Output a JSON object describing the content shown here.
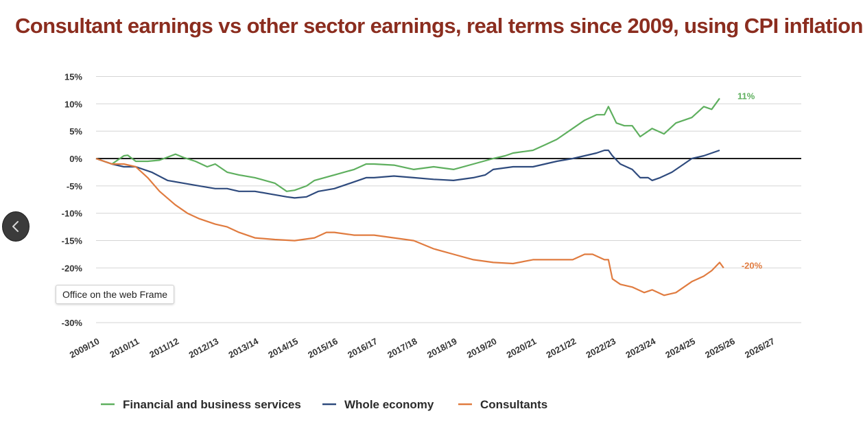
{
  "chart_data": {
    "type": "line",
    "title": "Consultant earnings vs other sector earnings, real terms since 2009, using CPI inflation",
    "xlabel": "",
    "ylabel": "",
    "ylim": [
      -30,
      15
    ],
    "yticks": [
      15,
      10,
      5,
      0,
      -5,
      -10,
      -15,
      -20,
      -30
    ],
    "ytick_labels": [
      "15%",
      "10%",
      "5%",
      "0%",
      "-5%",
      "-10%",
      "-15%",
      "-20%",
      "-30%"
    ],
    "categories": [
      "2009/10",
      "2010/11",
      "2011/12",
      "2012/13",
      "2013/14",
      "2014/15",
      "2015/16",
      "2016/17",
      "2017/18",
      "2018/19",
      "2019/20",
      "2020/21",
      "2021/22",
      "2022/23",
      "2023/24",
      "2024/25",
      "2025/26",
      "2026/27"
    ],
    "grid": true,
    "zero_line": true,
    "legend": "bottom",
    "series": [
      {
        "name": "Financial and business services",
        "color": "#5eaf5e",
        "end_label": "11%",
        "x": [
          0,
          0.4,
          0.7,
          0.8,
          1.0,
          1.3,
          1.6,
          2.0,
          2.2,
          2.5,
          2.8,
          3.0,
          3.3,
          3.6,
          4.0,
          4.5,
          4.8,
          5.0,
          5.3,
          5.5,
          6.0,
          6.5,
          6.8,
          7.0,
          7.5,
          8.0,
          8.5,
          9.0,
          9.5,
          10.0,
          10.3,
          10.5,
          11.0,
          11.3,
          11.6,
          12.0,
          12.3,
          12.6,
          12.8,
          12.9,
          13.0,
          13.1,
          13.3,
          13.5,
          13.7,
          14.0,
          14.3,
          14.6,
          15.0,
          15.3,
          15.5,
          15.7
        ],
        "values": [
          0,
          -1,
          0.5,
          0.6,
          -0.5,
          -0.5,
          -0.3,
          0.8,
          0.2,
          -0.5,
          -1.5,
          -1,
          -2.5,
          -3,
          -3.5,
          -4.5,
          -6,
          -5.8,
          -5,
          -4,
          -3,
          -2,
          -1,
          -1,
          -1.2,
          -2,
          -1.5,
          -2,
          -1,
          0,
          0.5,
          1,
          1.5,
          2.5,
          3.5,
          5.5,
          7,
          8,
          8,
          9.5,
          8,
          6.5,
          6,
          6,
          4,
          5.5,
          4.5,
          6.5,
          7.5,
          9.5,
          9,
          11
        ]
      },
      {
        "name": "Whole economy",
        "color": "#2e4a7d",
        "end_label": "",
        "x": [
          0,
          0.4,
          0.7,
          1.0,
          1.4,
          1.8,
          2.2,
          2.6,
          3.0,
          3.3,
          3.6,
          4.0,
          4.4,
          4.8,
          5.0,
          5.3,
          5.6,
          6.0,
          6.4,
          6.8,
          7.0,
          7.5,
          8.0,
          8.5,
          9.0,
          9.5,
          9.8,
          10.0,
          10.5,
          11.0,
          11.3,
          11.6,
          12.0,
          12.3,
          12.6,
          12.8,
          12.9,
          13.0,
          13.2,
          13.5,
          13.7,
          13.9,
          14.0,
          14.2,
          14.5,
          14.8,
          15.0,
          15.3,
          15.7
        ],
        "values": [
          0,
          -1,
          -1.5,
          -1.5,
          -2.5,
          -4,
          -4.5,
          -5,
          -5.5,
          -5.5,
          -6,
          -6,
          -6.5,
          -7,
          -7.2,
          -7,
          -6,
          -5.5,
          -4.5,
          -3.5,
          -3.5,
          -3.2,
          -3.5,
          -3.8,
          -4,
          -3.5,
          -3,
          -2,
          -1.5,
          -1.5,
          -1,
          -0.5,
          0,
          0.5,
          1,
          1.5,
          1.5,
          0.5,
          -1,
          -2,
          -3.5,
          -3.5,
          -4,
          -3.5,
          -2.5,
          -1,
          0,
          0.5,
          1.5
        ]
      },
      {
        "name": "Consultants",
        "color": "#e07b3f",
        "end_label": "-20%",
        "x": [
          0,
          0.4,
          0.7,
          1.0,
          1.3,
          1.6,
          2.0,
          2.3,
          2.6,
          3.0,
          3.3,
          3.6,
          4.0,
          4.5,
          5.0,
          5.5,
          5.8,
          6.0,
          6.5,
          7.0,
          7.5,
          8.0,
          8.5,
          9.0,
          9.5,
          10.0,
          10.5,
          11.0,
          11.5,
          12.0,
          12.3,
          12.5,
          12.8,
          12.9,
          13.0,
          13.2,
          13.5,
          13.8,
          14.0,
          14.3,
          14.6,
          15.0,
          15.3,
          15.5,
          15.7,
          15.8
        ],
        "values": [
          0,
          -1,
          -1,
          -1.5,
          -3.5,
          -6,
          -8.5,
          -10,
          -11,
          -12,
          -12.5,
          -13.5,
          -14.5,
          -14.8,
          -15,
          -14.5,
          -13.5,
          -13.5,
          -14,
          -14,
          -14.5,
          -15,
          -16.5,
          -17.5,
          -18.5,
          -19,
          -19.2,
          -18.5,
          -18.5,
          -18.5,
          -17.5,
          -17.5,
          -18.5,
          -18.5,
          -22,
          -23,
          -23.5,
          -24.5,
          -24,
          -25,
          -24.5,
          -22.5,
          -21.5,
          -20.5,
          -19,
          -20
        ]
      }
    ]
  },
  "tooltip": {
    "text": "Office on the web Frame"
  },
  "nav": {
    "icon": "chevron-left-icon"
  }
}
